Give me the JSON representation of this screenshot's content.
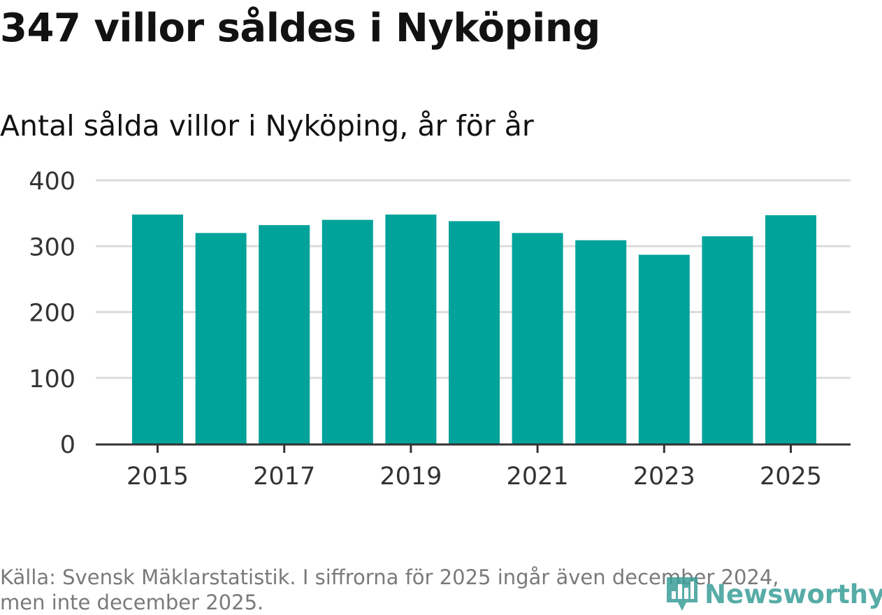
{
  "title": "347 villor såldes i Nyköping",
  "subtitle": "Antal sålda villor i Nyköping, år för år",
  "footer": {
    "line1": "Källa: Svensk Mäklarstatistik. I siffrorna för 2025 ingår även december 2024,",
    "line2": "men inte december 2025."
  },
  "logo": {
    "text": "Newsworthy",
    "icon": "bar-chart-pin-icon"
  },
  "colors": {
    "bar": "#00a39a",
    "grid": "#dcdcdc",
    "axis": "#333333",
    "tick_text": "#333333",
    "logo": "#3a9e98"
  },
  "chart_data": {
    "type": "bar",
    "categories": [
      "2015",
      "2016",
      "2017",
      "2018",
      "2019",
      "2020",
      "2021",
      "2022",
      "2023",
      "2024",
      "2025"
    ],
    "values": [
      348,
      320,
      332,
      340,
      348,
      338,
      320,
      309,
      287,
      315,
      347
    ],
    "x_tick_labels": [
      "2015",
      "2017",
      "2019",
      "2021",
      "2023",
      "2025"
    ],
    "y_ticks": [
      0,
      100,
      200,
      300,
      400
    ],
    "ylim": [
      0,
      400
    ],
    "title": "347 villor såldes i Nyköping",
    "subtitle": "Antal sålda villor i Nyköping, år för år",
    "xlabel": "",
    "ylabel": "",
    "grid": true,
    "legend": "none"
  }
}
